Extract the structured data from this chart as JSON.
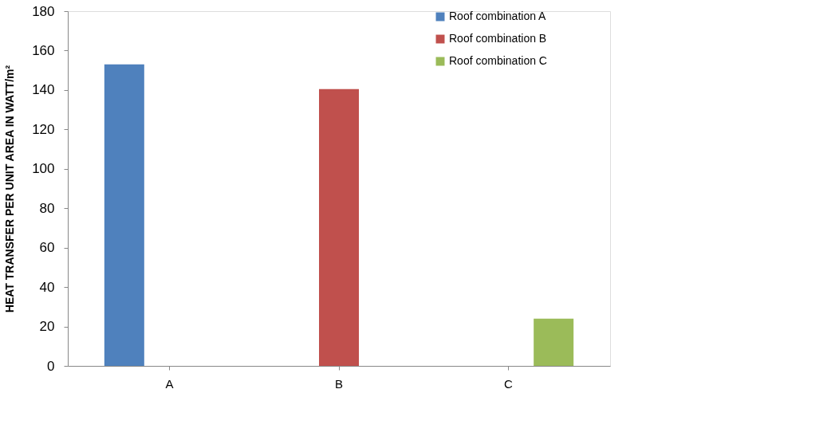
{
  "chart_data": {
    "type": "bar",
    "categories": [
      "A",
      "B",
      "C"
    ],
    "series": [
      {
        "name": "Roof combination A",
        "color": "#4f81bd",
        "values": [
          153,
          null,
          null
        ]
      },
      {
        "name": "Roof combination B",
        "color": "#c0504d",
        "values": [
          null,
          140.5,
          null
        ]
      },
      {
        "name": "Roof combination C",
        "color": "#9bbb59",
        "values": [
          null,
          null,
          24
        ]
      }
    ],
    "ylabel": "HEAT TRANSFER PER UNIT AREA IN WATT/m²",
    "ylim": [
      0,
      180
    ],
    "yticks": [
      0,
      20,
      40,
      60,
      80,
      100,
      120,
      140,
      160,
      180
    ],
    "grid": false,
    "legend": "right"
  }
}
